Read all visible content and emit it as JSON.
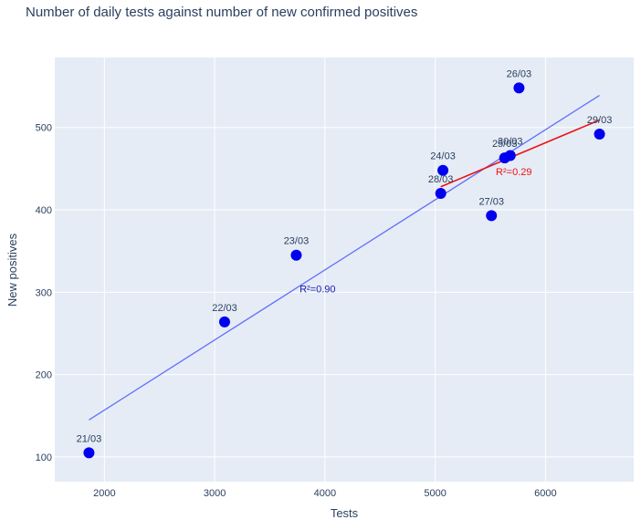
{
  "chart_data": {
    "type": "scatter",
    "title": "Number of daily tests against number of new confirmed positives",
    "xlabel": "Tests",
    "ylabel": "New positives",
    "xlim": [
      1550,
      6800
    ],
    "ylim": [
      70,
      585
    ],
    "xticks": [
      2000,
      3000,
      4000,
      5000,
      6000
    ],
    "yticks": [
      100,
      200,
      300,
      400,
      500
    ],
    "grid": true,
    "points": [
      {
        "label": "21/03",
        "x": 1860,
        "y": 105
      },
      {
        "label": "22/03",
        "x": 3090,
        "y": 264
      },
      {
        "label": "23/03",
        "x": 3740,
        "y": 345
      },
      {
        "label": "24/03",
        "x": 5070,
        "y": 448
      },
      {
        "label": "25/03",
        "x": 5630,
        "y": 463
      },
      {
        "label": "26/03",
        "x": 5760,
        "y": 548
      },
      {
        "label": "27/03",
        "x": 5510,
        "y": 393
      },
      {
        "label": "28/03",
        "x": 5050,
        "y": 420
      },
      {
        "label": "29/03",
        "x": 6490,
        "y": 492
      },
      {
        "label": "30/03",
        "x": 5680,
        "y": 466
      }
    ],
    "series": [
      {
        "color": "#636efa",
        "x": [
          1860,
          6490
        ],
        "y": [
          145,
          539
        ],
        "annotation": "R²=0.90",
        "ann_x": 3770,
        "ann_y": 300
      },
      {
        "color": "#ee1111",
        "x": [
          5050,
          6490
        ],
        "y": [
          428,
          509
        ],
        "annotation": "R²=0.29",
        "ann_x": 5550,
        "ann_y": 442
      }
    ],
    "marker_color": "#0000ee",
    "plot_bg": "#e5ecf6"
  }
}
